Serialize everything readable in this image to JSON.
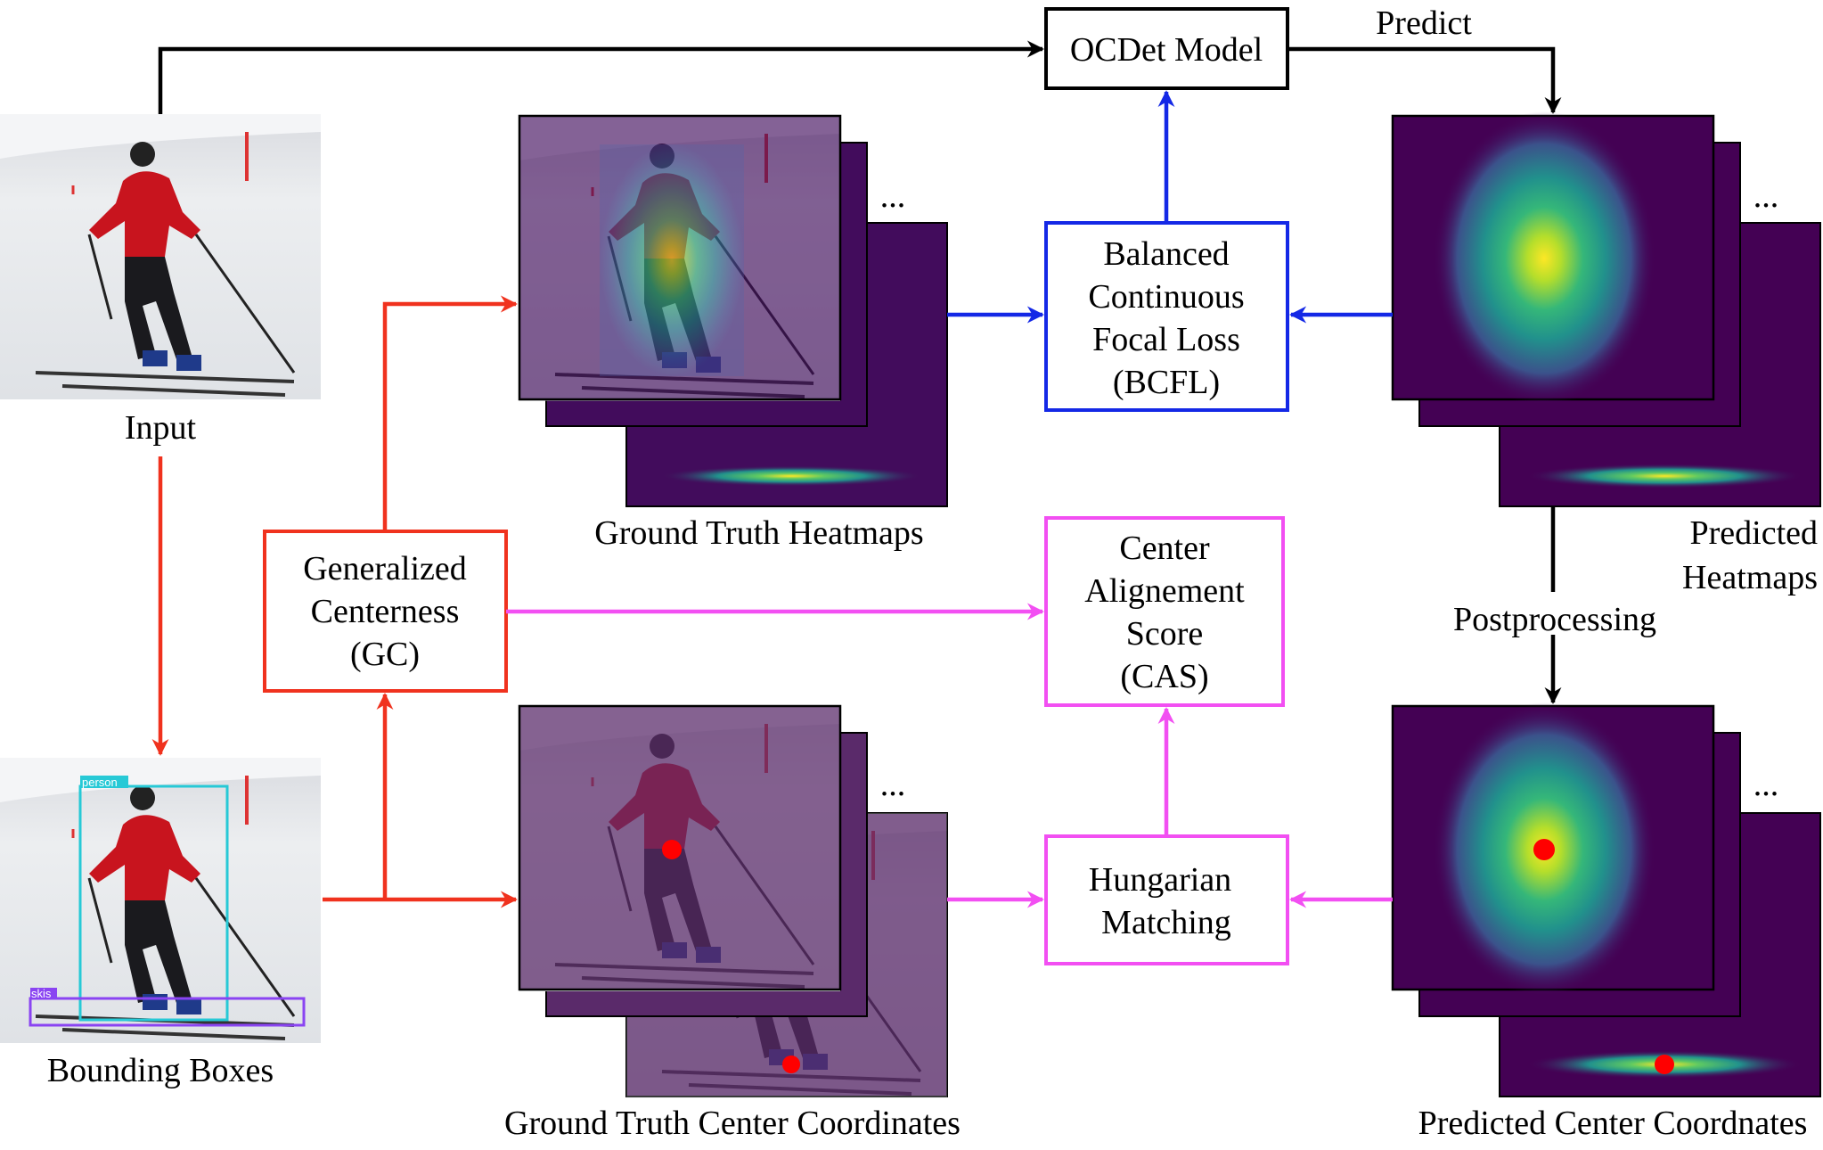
{
  "colors": {
    "black": "#000000",
    "red": "#f0321e",
    "blue": "#1428e6",
    "magenta": "#f24ff2",
    "heatmap_bg": "#420c5c",
    "overlay": "#5a2a6a",
    "center_dot": "#ff0000",
    "person_box": "#27c9d6",
    "skis_box": "#8a44f2"
  },
  "labels": {
    "input": "Input",
    "bounding_boxes": "Bounding Boxes",
    "gt_heatmaps": "Ground Truth Heatmaps",
    "gt_centers": "Ground Truth Center Coordinates",
    "pred_heatmaps_line1": "Predicted",
    "pred_heatmaps_line2": "Heatmaps",
    "pred_centers": "Predicted Center Coordnates",
    "predict": "Predict",
    "postprocessing": "Postprocessing",
    "ellipsis": "..."
  },
  "boxes": {
    "ocdet": "OCDet Model",
    "bcfl": [
      "Balanced",
      "Continuous",
      "Focal Loss",
      "(BCFL)"
    ],
    "gc": [
      "Generalized",
      "Centerness",
      "(GC)"
    ],
    "cas": [
      "Center",
      "Alignement",
      "Score",
      "(CAS)"
    ],
    "hungarian": [
      "Hungarian",
      "Matching"
    ]
  },
  "bbox_tags": {
    "person": "person",
    "skis": "skis"
  },
  "icons": [
    "skier-photo",
    "heatmap-stack",
    "center-dot"
  ]
}
